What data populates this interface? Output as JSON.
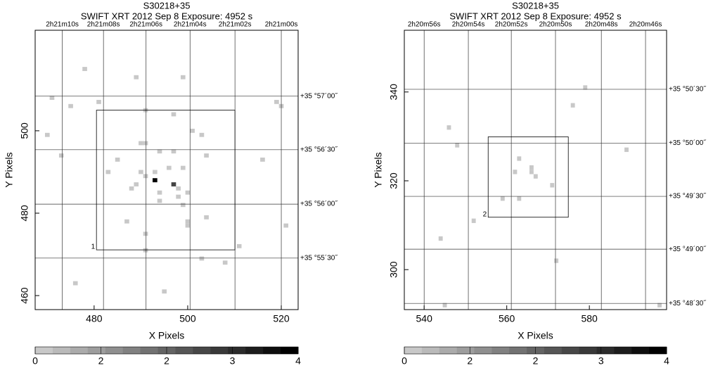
{
  "chart_data": [
    {
      "type": "image",
      "title": "S30218+35",
      "subtitle": "SWIFT XRT   2012 Sep  8   Exposure: 4952 s",
      "xlabel": "X Pixels",
      "ylabel": "Y Pixels",
      "xlim": [
        467.4,
        523.6
      ],
      "ylim": [
        456.6,
        524.4
      ],
      "xticks": [
        480,
        500,
        520
      ],
      "yticks": [
        460,
        480,
        500
      ],
      "ra_ticks": [
        {
          "value": 473.2,
          "label": "2h21m10s"
        },
        {
          "value": 482.0,
          "label": "2h21m08s"
        },
        {
          "value": 491.1,
          "label": "2h21m06s"
        },
        {
          "value": 500.5,
          "label": "2h21m04s"
        },
        {
          "value": 510.1,
          "label": "2h21m02s"
        },
        {
          "value": 520.0,
          "label": "2h21m00s"
        }
      ],
      "dec_ticks": [
        {
          "value": 508.4,
          "label": "+35 °57´00˝"
        },
        {
          "value": 495.4,
          "label": "+35 °56´30˝"
        },
        {
          "value": 482.2,
          "label": "+35 °56´00˝"
        },
        {
          "value": 469.1,
          "label": "+35 °55´30˝"
        }
      ],
      "region": {
        "label": "1",
        "x": [
          480.5,
          510.1
        ],
        "y": [
          471.1,
          505.0
        ]
      },
      "cmap": [
        "#c8c8c8",
        "#000000"
      ],
      "clim": [
        1,
        4
      ],
      "colorbar_labels": [
        "0",
        "2",
        "2",
        "3",
        "4"
      ],
      "pixels": [
        {
          "x": 478,
          "y": 515,
          "v": 1
        },
        {
          "x": 471,
          "y": 508,
          "v": 1
        },
        {
          "x": 475,
          "y": 506,
          "v": 1
        },
        {
          "x": 481,
          "y": 507,
          "v": 1
        },
        {
          "x": 470,
          "y": 499,
          "v": 1
        },
        {
          "x": 473,
          "y": 494,
          "v": 1
        },
        {
          "x": 489,
          "y": 513,
          "v": 1
        },
        {
          "x": 499,
          "y": 513,
          "v": 1
        },
        {
          "x": 491,
          "y": 505,
          "v": 1
        },
        {
          "x": 497,
          "y": 504,
          "v": 1
        },
        {
          "x": 501,
          "y": 500,
          "v": 1
        },
        {
          "x": 503,
          "y": 499,
          "v": 1
        },
        {
          "x": 490,
          "y": 497,
          "v": 1
        },
        {
          "x": 491,
          "y": 497,
          "v": 1
        },
        {
          "x": 494,
          "y": 495,
          "v": 1
        },
        {
          "x": 497,
          "y": 495,
          "v": 1
        },
        {
          "x": 504,
          "y": 494,
          "v": 1
        },
        {
          "x": 485,
          "y": 493,
          "v": 1
        },
        {
          "x": 483,
          "y": 490,
          "v": 1
        },
        {
          "x": 490,
          "y": 490,
          "v": 1
        },
        {
          "x": 493,
          "y": 490,
          "v": 1
        },
        {
          "x": 496,
          "y": 491,
          "v": 1
        },
        {
          "x": 499,
          "y": 491,
          "v": 1
        },
        {
          "x": 493,
          "y": 488,
          "v": 4
        },
        {
          "x": 497,
          "y": 487,
          "v": 3
        },
        {
          "x": 489,
          "y": 487,
          "v": 1
        },
        {
          "x": 491,
          "y": 489,
          "v": 1
        },
        {
          "x": 488,
          "y": 486,
          "v": 1
        },
        {
          "x": 494,
          "y": 485,
          "v": 1
        },
        {
          "x": 498,
          "y": 486,
          "v": 1
        },
        {
          "x": 500,
          "y": 485,
          "v": 1
        },
        {
          "x": 498,
          "y": 484,
          "v": 1
        },
        {
          "x": 499,
          "y": 482,
          "v": 1
        },
        {
          "x": 494,
          "y": 483,
          "v": 1
        },
        {
          "x": 504,
          "y": 479,
          "v": 1
        },
        {
          "x": 487,
          "y": 478,
          "v": 1
        },
        {
          "x": 500,
          "y": 478,
          "v": 1
        },
        {
          "x": 500,
          "y": 477,
          "v": 1
        },
        {
          "x": 491,
          "y": 475,
          "v": 1
        },
        {
          "x": 511,
          "y": 472,
          "v": 1
        },
        {
          "x": 503,
          "y": 469,
          "v": 1
        },
        {
          "x": 508,
          "y": 468,
          "v": 1
        },
        {
          "x": 491,
          "y": 471,
          "v": 1
        },
        {
          "x": 476,
          "y": 463,
          "v": 1
        },
        {
          "x": 495,
          "y": 461,
          "v": 1
        },
        {
          "x": 516,
          "y": 493,
          "v": 1
        },
        {
          "x": 519,
          "y": 507,
          "v": 1
        },
        {
          "x": 520,
          "y": 506,
          "v": 1
        },
        {
          "x": 521,
          "y": 477,
          "v": 1
        }
      ]
    },
    {
      "type": "image",
      "title": "S30218+35",
      "subtitle": "SWIFT XRT   2012 Sep  8   Exposure: 4952 s",
      "xlabel": "X Pixels",
      "ylabel": "Y Pixels",
      "xlim": [
        535.2,
        598.7
      ],
      "ylim": [
        291.0,
        353.9
      ],
      "xticks": [
        540,
        560,
        580
      ],
      "yticks": [
        300,
        320,
        340
      ],
      "ra_ticks": [
        {
          "value": 540.0,
          "label": "2h20m56s"
        },
        {
          "value": 550.7,
          "label": "2h20m54s"
        },
        {
          "value": 561.1,
          "label": "2h20m52s"
        },
        {
          "value": 571.8,
          "label": "2h20m50s"
        },
        {
          "value": 582.9,
          "label": "2h20m48s"
        },
        {
          "value": 593.6,
          "label": "2h20m46s"
        }
      ],
      "dec_ticks": [
        {
          "value": 340.6,
          "label": "+35 °50´30˝"
        },
        {
          "value": 328.5,
          "label": "+35 °50´00˝"
        },
        {
          "value": 316.5,
          "label": "+35 °49´30˝"
        },
        {
          "value": 304.6,
          "label": "+35 °49´00˝"
        },
        {
          "value": 292.4,
          "label": "+35 °48´30˝"
        }
      ],
      "region": {
        "label": "2",
        "x": [
          555.5,
          574.9
        ],
        "y": [
          311.8,
          329.9
        ]
      },
      "cmap": [
        "#c8c8c8",
        "#000000"
      ],
      "clim": [
        1,
        4
      ],
      "colorbar_labels": [
        "0",
        "2",
        "2",
        "3",
        "4"
      ],
      "pixels": [
        {
          "x": 546,
          "y": 332,
          "v": 1
        },
        {
          "x": 548,
          "y": 328,
          "v": 1
        },
        {
          "x": 544,
          "y": 307,
          "v": 1
        },
        {
          "x": 552,
          "y": 311,
          "v": 1
        },
        {
          "x": 545,
          "y": 292,
          "v": 1
        },
        {
          "x": 563,
          "y": 325,
          "v": 1
        },
        {
          "x": 562,
          "y": 322,
          "v": 1
        },
        {
          "x": 566,
          "y": 323,
          "v": 1
        },
        {
          "x": 566,
          "y": 322,
          "v": 1
        },
        {
          "x": 567,
          "y": 321,
          "v": 1
        },
        {
          "x": 571,
          "y": 319,
          "v": 1
        },
        {
          "x": 559,
          "y": 316,
          "v": 1
        },
        {
          "x": 563,
          "y": 316,
          "v": 1
        },
        {
          "x": 579,
          "y": 341,
          "v": 1
        },
        {
          "x": 576,
          "y": 337,
          "v": 1
        },
        {
          "x": 589,
          "y": 327,
          "v": 1
        },
        {
          "x": 572,
          "y": 302,
          "v": 1
        },
        {
          "x": 597,
          "y": 292,
          "v": 1
        }
      ]
    }
  ]
}
